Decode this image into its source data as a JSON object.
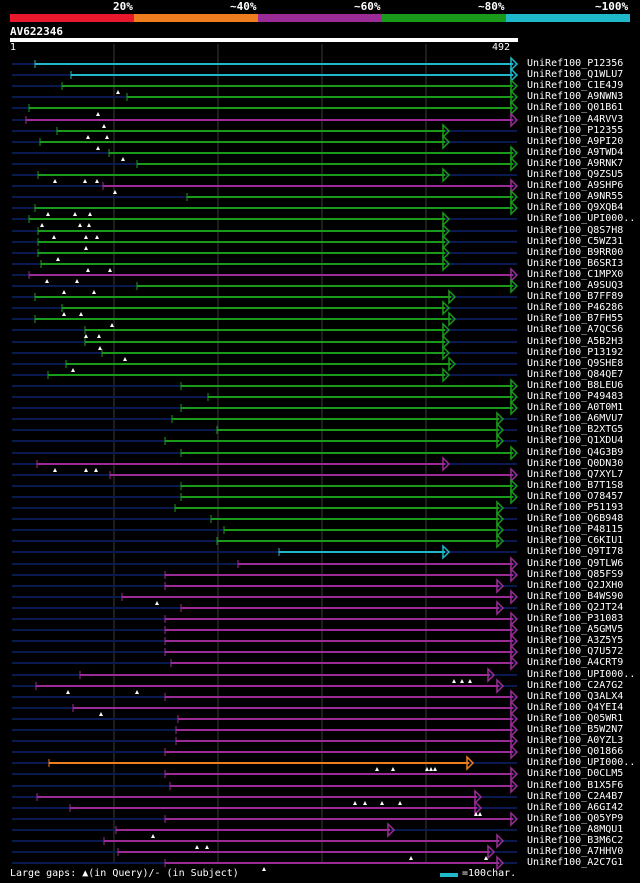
{
  "legend": {
    "segments": [
      {
        "label": "20%",
        "color": "#e8192c"
      },
      {
        "label": "~40%",
        "color": "#ee7d1f"
      },
      {
        "label": "~60%",
        "color": "#9b2c97"
      },
      {
        "label": "~80%",
        "color": "#1a9a1a"
      },
      {
        "label": "~100%",
        "color": "#1fb8c8"
      }
    ]
  },
  "query": {
    "name": "AV622346",
    "start_label": "1",
    "end_label": "492",
    "length": 492
  },
  "colors": {
    "cyan": "#1fb8c8",
    "green": "#1a9a1a",
    "purple": "#9b2c97",
    "orange": "#ee7d1f",
    "track": "#0a1a50",
    "grid": "#3a3a3a",
    "gap": "#ffffff"
  },
  "hits": [
    {
      "name": "UniRef100_P12356",
      "start": 35,
      "end": 517,
      "color": "cyan"
    },
    {
      "name": "UniRef100_Q1WLU7",
      "start": 71,
      "end": 517,
      "color": "cyan"
    },
    {
      "name": "UniRef100_C1E4J9",
      "start": 62,
      "end": 517,
      "color": "green",
      "gaps": [
        118
      ]
    },
    {
      "name": "UniRef100_A9NWN3",
      "start": 127,
      "end": 517,
      "color": "green"
    },
    {
      "name": "UniRef100_Q01B61",
      "start": 29,
      "end": 517,
      "color": "green",
      "gaps": [
        98
      ]
    },
    {
      "name": "UniRef100_A4RVV3",
      "start": 26,
      "end": 517,
      "color": "purple",
      "gaps": [
        104
      ]
    },
    {
      "name": "UniRef100_P12355",
      "start": 57,
      "end": 449,
      "color": "green",
      "gaps": [
        88,
        107
      ]
    },
    {
      "name": "UniRef100_A9PI20",
      "start": 40,
      "end": 449,
      "color": "green",
      "gaps": [
        98
      ]
    },
    {
      "name": "UniRef100_A9TWD4",
      "start": 109,
      "end": 517,
      "color": "green",
      "gaps": [
        123
      ]
    },
    {
      "name": "UniRef100_A9RNK7",
      "start": 137,
      "end": 517,
      "color": "green"
    },
    {
      "name": "UniRef100_Q9ZSU5",
      "start": 38,
      "end": 449,
      "color": "green",
      "gaps": [
        55,
        85,
        97
      ]
    },
    {
      "name": "UniRef100_A9SHP6",
      "start": 103,
      "end": 517,
      "color": "purple",
      "gaps": [
        115
      ]
    },
    {
      "name": "UniRef100_A9NR55",
      "start": 187,
      "end": 517,
      "color": "green"
    },
    {
      "name": "UniRef100_Q9XQB4",
      "start": 35,
      "end": 517,
      "color": "green",
      "gaps": [
        48,
        75,
        90
      ]
    },
    {
      "name": "UniRef100_UPI000..",
      "start": 29,
      "end": 449,
      "color": "green",
      "gaps": [
        42,
        80,
        89
      ]
    },
    {
      "name": "UniRef100_Q8S7H8",
      "start": 38,
      "end": 449,
      "color": "green",
      "gaps": [
        54,
        86,
        97
      ]
    },
    {
      "name": "UniRef100_C5WZ31",
      "start": 38,
      "end": 449,
      "color": "green",
      "gaps": [
        86
      ]
    },
    {
      "name": "UniRef100_B9RR00",
      "start": 38,
      "end": 449,
      "color": "green",
      "gaps": [
        58
      ]
    },
    {
      "name": "UniRef100_B6SRI3",
      "start": 41,
      "end": 449,
      "color": "green",
      "gaps": [
        88,
        110
      ]
    },
    {
      "name": "UniRef100_C1MPX0",
      "start": 29,
      "end": 517,
      "color": "purple",
      "gaps": [
        47,
        77
      ]
    },
    {
      "name": "UniRef100_A9SUQ3",
      "start": 137,
      "end": 517,
      "color": "green",
      "gaps": [
        64,
        94
      ]
    },
    {
      "name": "UniRef100_B7FF89",
      "start": 35,
      "end": 455,
      "color": "green"
    },
    {
      "name": "UniRef100_P46286",
      "start": 62,
      "end": 449,
      "color": "green",
      "gaps": [
        64,
        81
      ]
    },
    {
      "name": "UniRef100_B7FH55",
      "start": 35,
      "end": 455,
      "color": "green",
      "gaps": [
        112
      ]
    },
    {
      "name": "UniRef100_A7QCS6",
      "start": 85,
      "end": 449,
      "color": "green",
      "gaps": [
        86,
        99
      ]
    },
    {
      "name": "UniRef100_A5B2H3",
      "start": 85,
      "end": 449,
      "color": "green",
      "gaps": [
        100
      ]
    },
    {
      "name": "UniRef100_P13192",
      "start": 102,
      "end": 449,
      "color": "green",
      "gaps": [
        125
      ]
    },
    {
      "name": "UniRef100_Q9SHE8",
      "start": 66,
      "end": 455,
      "color": "green",
      "gaps": [
        73
      ]
    },
    {
      "name": "UniRef100_Q84QE7",
      "start": 48,
      "end": 449,
      "color": "green"
    },
    {
      "name": "UniRef100_B8LEU6",
      "start": 181,
      "end": 517,
      "color": "green"
    },
    {
      "name": "UniRef100_P49483",
      "start": 208,
      "end": 517,
      "color": "green"
    },
    {
      "name": "UniRef100_A0T0M1",
      "start": 181,
      "end": 517,
      "color": "green"
    },
    {
      "name": "UniRef100_A6MVU7",
      "start": 172,
      "end": 503,
      "color": "green"
    },
    {
      "name": "UniRef100_B2XTG5",
      "start": 217,
      "end": 503,
      "color": "green"
    },
    {
      "name": "UniRef100_Q1XDU4",
      "start": 165,
      "end": 503,
      "color": "green"
    },
    {
      "name": "UniRef100_Q4G3B9",
      "start": 181,
      "end": 517,
      "color": "green"
    },
    {
      "name": "UniRef100_Q0DN30",
      "start": 37,
      "end": 449,
      "color": "purple",
      "gaps": [
        55,
        86,
        96
      ]
    },
    {
      "name": "UniRef100_Q7XYL7",
      "start": 110,
      "end": 517,
      "color": "purple"
    },
    {
      "name": "UniRef100_B7T1S8",
      "start": 181,
      "end": 517,
      "color": "green"
    },
    {
      "name": "UniRef100_O78457",
      "start": 181,
      "end": 517,
      "color": "green"
    },
    {
      "name": "UniRef100_P51193",
      "start": 175,
      "end": 503,
      "color": "green"
    },
    {
      "name": "UniRef100_Q6B948",
      "start": 211,
      "end": 503,
      "color": "green"
    },
    {
      "name": "UniRef100_P48115",
      "start": 224,
      "end": 503,
      "color": "green"
    },
    {
      "name": "UniRef100_C6KIU1",
      "start": 217,
      "end": 503,
      "color": "green"
    },
    {
      "name": "UniRef100_Q9TI78",
      "start": 279,
      "end": 449,
      "color": "cyan"
    },
    {
      "name": "UniRef100_Q9TLW6",
      "start": 238,
      "end": 517,
      "color": "purple"
    },
    {
      "name": "UniRef100_Q85FS9",
      "start": 165,
      "end": 517,
      "color": "purple"
    },
    {
      "name": "UniRef100_Q2JXH0",
      "start": 165,
      "end": 503,
      "color": "purple"
    },
    {
      "name": "UniRef100_B4WS90",
      "start": 122,
      "end": 517,
      "color": "purple",
      "gaps": [
        157
      ]
    },
    {
      "name": "UniRef100_Q2JT24",
      "start": 181,
      "end": 503,
      "color": "purple"
    },
    {
      "name": "UniRef100_P31083",
      "start": 165,
      "end": 517,
      "color": "purple"
    },
    {
      "name": "UniRef100_A5GMV5",
      "start": 165,
      "end": 517,
      "color": "purple"
    },
    {
      "name": "UniRef100_A3Z5Y5",
      "start": 165,
      "end": 517,
      "color": "purple"
    },
    {
      "name": "UniRef100_Q7U572",
      "start": 165,
      "end": 517,
      "color": "purple"
    },
    {
      "name": "UniRef100_A4CRT9",
      "start": 171,
      "end": 517,
      "color": "purple"
    },
    {
      "name": "UniRef100_UPI000..",
      "start": 80,
      "end": 494,
      "color": "purple",
      "gaps": [
        454,
        462,
        470
      ]
    },
    {
      "name": "UniRef100_C2A7G2",
      "start": 36,
      "end": 503,
      "color": "purple",
      "gaps": [
        68,
        137
      ]
    },
    {
      "name": "UniRef100_Q3ALX4",
      "start": 165,
      "end": 517,
      "color": "purple"
    },
    {
      "name": "UniRef100_Q4YEI4",
      "start": 73,
      "end": 517,
      "color": "purple",
      "gaps": [
        101
      ]
    },
    {
      "name": "UniRef100_Q05WR1",
      "start": 178,
      "end": 517,
      "color": "purple"
    },
    {
      "name": "UniRef100_B5W2N7",
      "start": 176,
      "end": 517,
      "color": "purple"
    },
    {
      "name": "UniRef100_A0YZL3",
      "start": 176,
      "end": 517,
      "color": "purple"
    },
    {
      "name": "UniRef100_Q01866",
      "start": 165,
      "end": 517,
      "color": "purple"
    },
    {
      "name": "UniRef100_UPI000..",
      "start": 49,
      "end": 473,
      "color": "orange",
      "gaps": [
        377,
        393,
        427,
        431,
        435
      ]
    },
    {
      "name": "UniRef100_D0CLM5",
      "start": 165,
      "end": 517,
      "color": "purple"
    },
    {
      "name": "UniRef100_B1X5F6",
      "start": 170,
      "end": 517,
      "color": "purple"
    },
    {
      "name": "UniRef100_C2A4B7",
      "start": 37,
      "end": 481,
      "color": "purple",
      "gaps": [
        355,
        365,
        382,
        400
      ]
    },
    {
      "name": "UniRef100_A6GI42",
      "start": 70,
      "end": 481,
      "color": "purple",
      "gaps": [
        476,
        480
      ]
    },
    {
      "name": "UniRef100_Q05YP9",
      "start": 165,
      "end": 517,
      "color": "purple"
    },
    {
      "name": "UniRef100_A8MQU1",
      "start": 116,
      "end": 394,
      "color": "purple",
      "gaps": [
        153
      ]
    },
    {
      "name": "UniRef100_B3M6C2",
      "start": 104,
      "end": 503,
      "color": "purple",
      "gaps": [
        197,
        207
      ]
    },
    {
      "name": "UniRef100_A7HHV0",
      "start": 118,
      "end": 494,
      "color": "purple",
      "gaps": [
        411,
        486
      ]
    },
    {
      "name": "UniRef100_A2C7G1",
      "start": 165,
      "end": 503,
      "color": "purple",
      "gaps": [
        264
      ]
    }
  ],
  "footer": {
    "text": "Large gaps: ▲(in Query)/- (in Subject)",
    "scale_label": "=100char."
  }
}
